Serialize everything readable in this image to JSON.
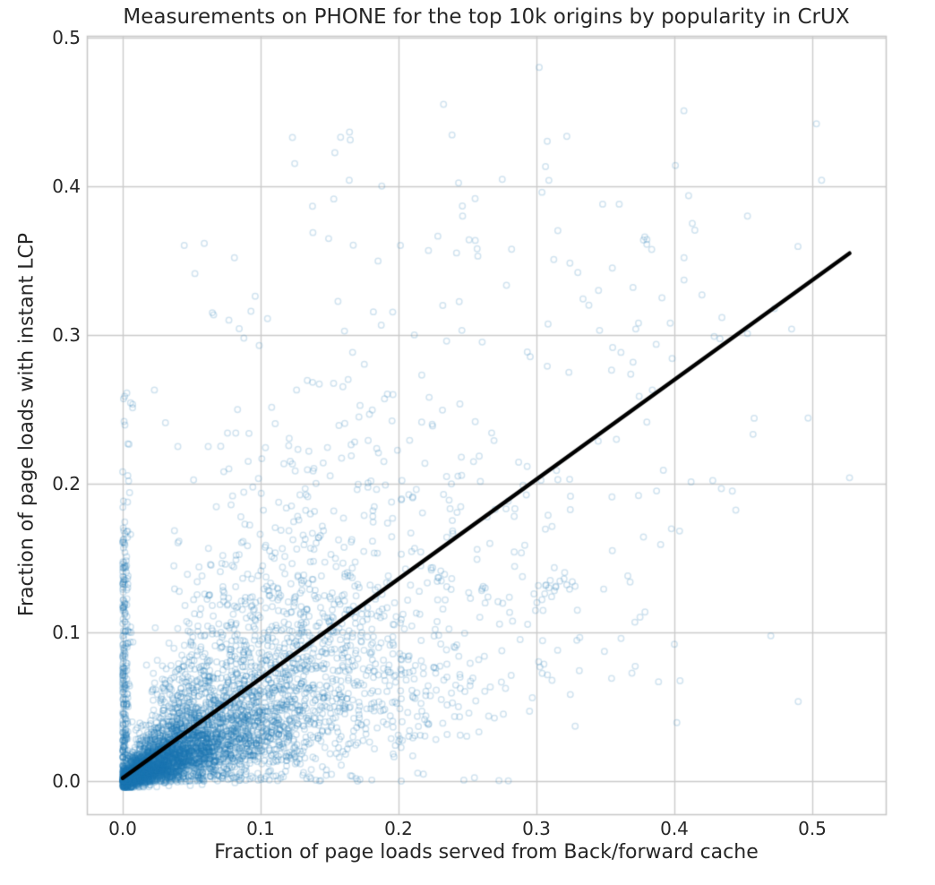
{
  "chart_data": {
    "type": "scatter",
    "title": "Measurements on PHONE for the top 10k origins by popularity in CrUX",
    "xlabel": "Fraction of page loads served from Back/forward cache",
    "ylabel": "Fraction of page loads with instant LCP",
    "x_ticks": [
      0.0,
      0.1,
      0.2,
      0.3,
      0.4,
      0.5
    ],
    "y_ticks": [
      0.0,
      0.1,
      0.2,
      0.3,
      0.4,
      0.5
    ],
    "x_tick_labels": [
      "0.0",
      "0.1",
      "0.2",
      "0.3",
      "0.4",
      "0.5"
    ],
    "y_tick_labels": [
      "0.0",
      "0.1",
      "0.2",
      "0.3",
      "0.4",
      "0.5"
    ],
    "xlim": [
      -0.026,
      0.553
    ],
    "ylim": [
      -0.022,
      0.501
    ],
    "grid": true,
    "legend": false,
    "n_points_desc": "~10,000 origins, one translucent open-circle marker per origin",
    "style": {
      "background": "#ffffff",
      "grid_color": "#cccccc",
      "spine_color": "#c9c9c9",
      "text_color": "#262626",
      "marker_color": "#1f77b4",
      "marker_alpha": 0.2,
      "marker_radius": 3.2,
      "marker_line_width": 1.5,
      "trend_color": "#000000",
      "trend_width": 4.5
    },
    "trendline": {
      "x1": 0.0,
      "y1": 0.002,
      "x2": 0.527,
      "y2": 0.355
    },
    "notable_points": [
      [
        0.302,
        0.48
      ],
      [
        0.158,
        0.433
      ],
      [
        0.309,
        0.404
      ],
      [
        0.304,
        0.396
      ],
      [
        0.348,
        0.388
      ],
      [
        0.36,
        0.388
      ],
      [
        0.453,
        0.38
      ],
      [
        0.413,
        0.375
      ],
      [
        0.38,
        0.361
      ],
      [
        0.257,
        0.358
      ],
      [
        0.355,
        0.345
      ],
      [
        0.33,
        0.342
      ],
      [
        0.345,
        0.33
      ],
      [
        0.338,
        0.32
      ],
      [
        0.407,
        0.352
      ],
      [
        0.407,
        0.337
      ],
      [
        0.37,
        0.332
      ],
      [
        0.42,
        0.327
      ],
      [
        0.391,
        0.325
      ],
      [
        0.374,
        0.308
      ],
      [
        0.372,
        0.304
      ],
      [
        0.397,
        0.308
      ],
      [
        0.485,
        0.304
      ],
      [
        0.453,
        0.301
      ],
      [
        0.081,
        0.352
      ],
      [
        0.065,
        0.315
      ],
      [
        0.077,
        0.31
      ],
      [
        0.093,
        0.316
      ],
      [
        0.105,
        0.311
      ],
      [
        0.384,
        0.263
      ],
      [
        0.392,
        0.209
      ],
      [
        0.527,
        0.204
      ],
      [
        0.442,
        0.195
      ],
      [
        0.374,
        0.192
      ],
      [
        0.355,
        0.155
      ],
      [
        0.4,
        0.092
      ],
      [
        0.003,
        0.261
      ],
      [
        0.0,
        0.208
      ],
      [
        0.001,
        0.147
      ],
      [
        0.002,
        0.143
      ],
      [
        0.023,
        0.263
      ],
      [
        0.031,
        0.241
      ],
      [
        0.04,
        0.225
      ],
      [
        0.062,
        0.225
      ],
      [
        0.076,
        0.234
      ],
      [
        0.082,
        0.234
      ],
      [
        0.077,
        0.21
      ],
      [
        0.091,
        0.215
      ],
      [
        0.306,
        0.126
      ],
      [
        0.309,
        0.13
      ],
      [
        0.311,
        0.124
      ],
      [
        0.307,
        0.132
      ],
      [
        0.313,
        0.128
      ],
      [
        0.304,
        0.122
      ],
      [
        0.31,
        0.135
      ],
      [
        0.314,
        0.131
      ],
      [
        0.322,
        0.132
      ],
      [
        0.326,
        0.134
      ],
      [
        0.324,
        0.129
      ],
      [
        0.32,
        0.136
      ],
      [
        0.328,
        0.131
      ],
      [
        0.297,
        0.056
      ]
    ],
    "point_cloud": {
      "seed": 1337,
      "main": {
        "n": 5200,
        "x_lambda": 0.075,
        "x_max": 0.52,
        "ratio_log_mean": -0.693,
        "ratio_log_sd": 0.7,
        "y_noise_sd": 0.0035,
        "y_min": -0.004,
        "y_max": 0.46
      },
      "left_strip": {
        "n": 300,
        "x_scale": 0.004,
        "x_pow": 2.0,
        "y_scale": 0.17,
        "y_pow": 2.2
      },
      "tall_strip": {
        "n": 50,
        "x_scale": 0.008,
        "x_pow": 2.0,
        "y_scale": 0.26,
        "y_pow": 1.2
      },
      "bottom_strip": {
        "n": 200,
        "x_lambda": 0.06,
        "x_max": 0.3,
        "y_scale": 0.008,
        "y_pow": 1.5
      }
    }
  }
}
